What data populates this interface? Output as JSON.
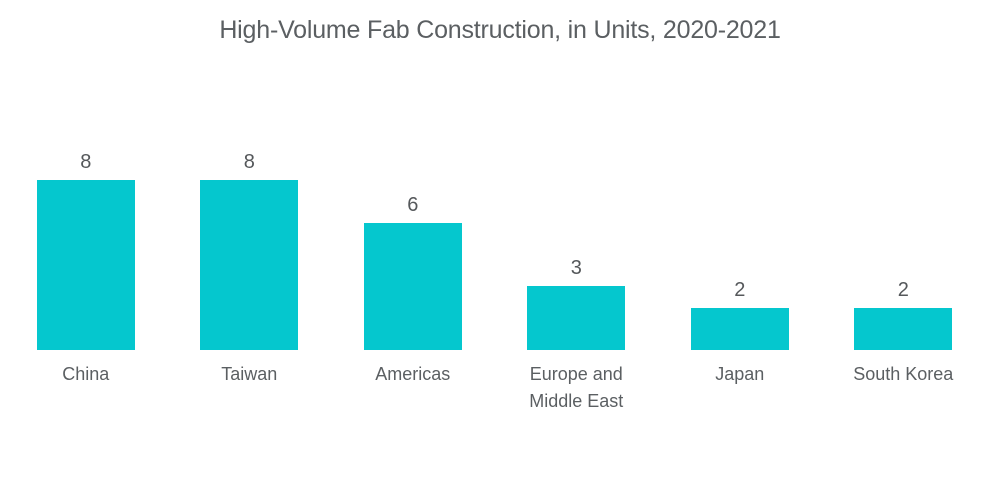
{
  "title": "High-Volume Fab Construction, in Units, 2020-2021",
  "chart_data": {
    "type": "bar",
    "title": "High-Volume Fab Construction, in Units, 2020-2021",
    "categories": [
      "China",
      "Taiwan",
      "Americas",
      "Europe and Middle East",
      "Japan",
      "South Korea"
    ],
    "values": [
      8,
      8,
      6,
      3,
      2,
      2
    ],
    "xlabel": "",
    "ylabel": "",
    "ylim": [
      0,
      8
    ],
    "grid": false,
    "legend": false,
    "value_labels_shown": true,
    "bar_color": "#05C7CE",
    "label_color": "#5b5f62",
    "background_color": "#ffffff"
  }
}
